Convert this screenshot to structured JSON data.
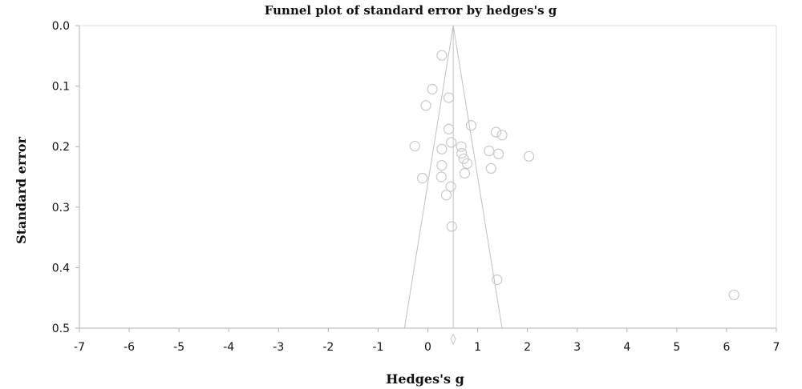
{
  "chart_data": {
    "type": "scatter",
    "title": "Funnel plot of standard error by hedges's g",
    "xlabel": "Hedges's g",
    "ylabel": "Standard error",
    "xlim": [
      -7,
      7
    ],
    "ylim": [
      0,
      0.5
    ],
    "y_inverted": true,
    "grid": false,
    "x_ticks": [
      -7,
      -6,
      -5,
      -4,
      -3,
      -2,
      -1,
      0,
      1,
      2,
      3,
      4,
      5,
      6,
      7
    ],
    "y_ticks": [
      0,
      0.1,
      0.2,
      0.3,
      0.4,
      0.5
    ],
    "y_tick_labels": [
      "0.0",
      "0.1",
      "0.2",
      "0.3",
      "0.4",
      "0.5"
    ],
    "series": [
      {
        "values": [
          {
            "x": 0.28,
            "y": 0.049
          },
          {
            "x": 0.09,
            "y": 0.105
          },
          {
            "x": 0.42,
            "y": 0.119
          },
          {
            "x": -0.04,
            "y": 0.132
          },
          {
            "x": 0.42,
            "y": 0.171
          },
          {
            "x": 0.87,
            "y": 0.165
          },
          {
            "x": 1.37,
            "y": 0.176
          },
          {
            "x": 1.49,
            "y": 0.181
          },
          {
            "x": -0.26,
            "y": 0.199
          },
          {
            "x": 0.47,
            "y": 0.193
          },
          {
            "x": 0.28,
            "y": 0.204
          },
          {
            "x": 0.67,
            "y": 0.2
          },
          {
            "x": 0.68,
            "y": 0.211
          },
          {
            "x": 1.23,
            "y": 0.207
          },
          {
            "x": 1.42,
            "y": 0.212
          },
          {
            "x": 2.03,
            "y": 0.216
          },
          {
            "x": 0.72,
            "y": 0.22
          },
          {
            "x": 0.79,
            "y": 0.228
          },
          {
            "x": 0.28,
            "y": 0.231
          },
          {
            "x": 1.27,
            "y": 0.236
          },
          {
            "x": 0.74,
            "y": 0.244
          },
          {
            "x": 0.27,
            "y": 0.25
          },
          {
            "x": -0.11,
            "y": 0.252
          },
          {
            "x": 0.46,
            "y": 0.266
          },
          {
            "x": 0.37,
            "y": 0.28
          },
          {
            "x": 0.48,
            "y": 0.332
          },
          {
            "x": 1.39,
            "y": 0.42
          },
          {
            "x": 6.15,
            "y": 0.445
          }
        ]
      }
    ],
    "pooled_estimate": 0.51,
    "funnel_lines": {
      "apex": {
        "x": 0.51,
        "y": 0
      },
      "base_left": {
        "x": -0.47,
        "y": 0.5
      },
      "base_right": {
        "x": 1.49,
        "y": 0.5
      }
    },
    "summary_diamond": {
      "x": 0.51,
      "y": 0.518
    }
  },
  "colors": {
    "marker": "#c8c8c8",
    "funnel": "#c0c0c0",
    "axis": "#b0b0b0",
    "text": "#111111"
  }
}
